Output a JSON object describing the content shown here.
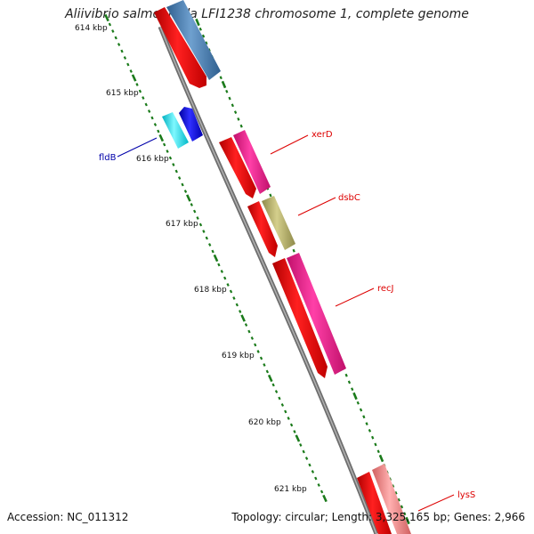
{
  "title": "Aliivibrio salmonicida LFI1238 chromosome 1, complete genome",
  "footer": {
    "accession": "Accession: NC_011312",
    "summary": "Topology: circular; Length: 3,325,165 bp; Genes: 2,966"
  },
  "ruler": {
    "ticks": [
      "614 kbp",
      "615 kbp",
      "616 kbp",
      "617 kbp",
      "618 kbp",
      "619 kbp",
      "620 kbp",
      "621 kbp"
    ]
  },
  "genes": [
    {
      "name": "fldB",
      "color": "#0000aa"
    },
    {
      "name": "xerD",
      "color": "#dd0000"
    },
    {
      "name": "dsbC",
      "color": "#dd0000"
    },
    {
      "name": "recJ",
      "color": "#dd0000"
    },
    {
      "name": "lysS",
      "color": "#dd0000"
    }
  ],
  "colors": {
    "cds": "#ff0000",
    "gene_magenta": "#ff1493",
    "gene_blue": "#4a7faf",
    "gene_olive": "#b9b36b",
    "gene_cyan": "#00e5ee",
    "gene_darkblue": "#0000ee",
    "gene_pink": "#f08080",
    "backbone": "#808080",
    "ticks": "#1a7a1a"
  }
}
